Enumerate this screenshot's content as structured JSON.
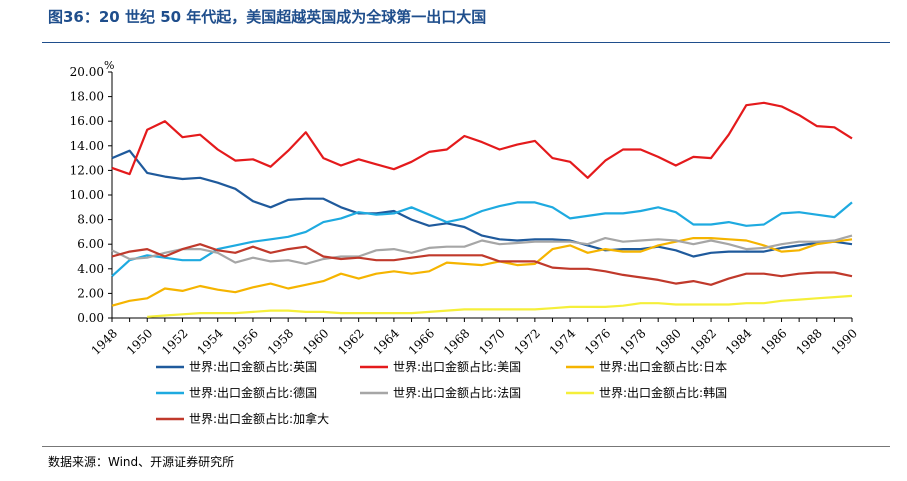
{
  "header": {
    "title": "图36：20 世纪 50 年代起，美国超越英国成为全球第一出口大国"
  },
  "footer": {
    "source": "数据来源：Wind、开源证券研究所"
  },
  "chart_data": {
    "type": "line",
    "ylabel": "%",
    "ylim": [
      0,
      20
    ],
    "xlim": [
      1948,
      1990
    ],
    "yticks": [
      "0.00",
      "2.00",
      "4.00",
      "6.00",
      "8.00",
      "10.00",
      "12.00",
      "14.00",
      "16.00",
      "18.00",
      "20.00"
    ],
    "xticks": [
      1948,
      1950,
      1952,
      1954,
      1956,
      1958,
      1960,
      1962,
      1964,
      1966,
      1968,
      1970,
      1972,
      1974,
      1976,
      1978,
      1980,
      1982,
      1984,
      1986,
      1988,
      1990
    ],
    "grid": false,
    "legend_position": "bottom",
    "x": [
      1948,
      1949,
      1950,
      1951,
      1952,
      1953,
      1954,
      1955,
      1956,
      1957,
      1958,
      1959,
      1960,
      1961,
      1962,
      1963,
      1964,
      1965,
      1966,
      1967,
      1968,
      1969,
      1970,
      1971,
      1972,
      1973,
      1974,
      1975,
      1976,
      1977,
      1978,
      1979,
      1980,
      1981,
      1982,
      1983,
      1984,
      1985,
      1986,
      1987,
      1988,
      1989,
      1990
    ],
    "series": [
      {
        "name": "世界:出口金额占比:英国",
        "color": "#1f5a9c",
        "values": [
          13.0,
          13.6,
          11.8,
          11.5,
          11.3,
          11.4,
          11.0,
          10.5,
          9.5,
          9.0,
          9.6,
          9.7,
          9.7,
          9.0,
          8.5,
          8.5,
          8.7,
          8.0,
          7.5,
          7.7,
          7.4,
          6.7,
          6.4,
          6.3,
          6.4,
          6.4,
          6.3,
          5.9,
          5.5,
          5.6,
          5.6,
          5.8,
          5.5,
          5.0,
          5.3,
          5.4,
          5.4,
          5.4,
          5.7,
          5.9,
          6.1,
          6.2,
          6.0
        ]
      },
      {
        "name": "世界:出口金额占比:美国",
        "color": "#e41a1c",
        "values": [
          12.2,
          11.7,
          15.3,
          16.0,
          14.7,
          14.9,
          13.7,
          12.8,
          12.9,
          12.3,
          13.6,
          15.1,
          13.0,
          12.4,
          12.9,
          12.5,
          12.1,
          12.7,
          13.5,
          13.7,
          14.8,
          14.3,
          13.7,
          14.1,
          14.4,
          13.0,
          12.7,
          11.4,
          12.8,
          13.7,
          13.7,
          13.1,
          12.4,
          13.1,
          13.0,
          14.9,
          17.3,
          17.5,
          17.2,
          16.5,
          15.6,
          15.5,
          14.6
        ]
      },
      {
        "name": "世界:出口金额占比:日本",
        "color": "#f5b400",
        "values": [
          1.0,
          1.4,
          1.6,
          2.4,
          2.2,
          2.6,
          2.3,
          2.1,
          2.5,
          2.8,
          2.4,
          2.7,
          3.0,
          3.6,
          3.2,
          3.6,
          3.8,
          3.6,
          3.8,
          4.5,
          4.4,
          4.3,
          4.6,
          4.3,
          4.4,
          5.6,
          5.9,
          5.3,
          5.6,
          5.4,
          5.4,
          5.9,
          6.2,
          6.5,
          6.5,
          6.4,
          6.3,
          5.9,
          5.4,
          5.5,
          6.0,
          6.2,
          6.4
        ]
      },
      {
        "name": "世界:出口金额占比:德国",
        "color": "#1eaae0",
        "values": [
          3.4,
          4.7,
          5.1,
          4.9,
          4.7,
          4.7,
          5.6,
          5.9,
          6.2,
          6.4,
          6.6,
          7.0,
          7.8,
          8.1,
          8.6,
          8.4,
          8.5,
          9.0,
          8.4,
          7.8,
          8.1,
          8.7,
          9.1,
          9.4,
          9.4,
          9.0,
          8.1,
          8.3,
          8.5,
          8.5,
          8.7,
          9.0,
          8.6,
          7.6,
          7.6,
          7.8,
          7.5,
          7.6,
          8.5,
          8.6,
          8.4,
          8.2,
          9.4
        ]
      },
      {
        "name": "世界:出口金额占比:法国",
        "color": "#a6a6a6",
        "values": [
          5.5,
          4.8,
          4.9,
          5.3,
          5.6,
          5.6,
          5.3,
          4.5,
          4.9,
          4.6,
          4.7,
          4.4,
          4.8,
          5.0,
          5.0,
          5.5,
          5.6,
          5.3,
          5.7,
          5.8,
          5.8,
          6.3,
          6.0,
          6.1,
          6.2,
          6.2,
          6.2,
          6.0,
          6.5,
          6.2,
          6.3,
          6.4,
          6.3,
          6.0,
          6.3,
          6.0,
          5.6,
          5.7,
          6.0,
          6.2,
          6.2,
          6.3,
          6.7
        ]
      },
      {
        "name": "世界:出口金额占比:韩国",
        "color": "#f5ef3a",
        "values": [
          null,
          null,
          0.1,
          0.2,
          0.3,
          0.4,
          0.4,
          0.4,
          0.5,
          0.6,
          0.6,
          0.5,
          0.5,
          0.4,
          0.4,
          0.4,
          0.4,
          0.4,
          0.5,
          0.6,
          0.7,
          0.7,
          0.7,
          0.7,
          0.7,
          0.8,
          0.9,
          0.9,
          0.9,
          1.0,
          1.2,
          1.2,
          1.1,
          1.1,
          1.1,
          1.1,
          1.2,
          1.2,
          1.4,
          1.5,
          1.6,
          1.7,
          1.8
        ]
      },
      {
        "name": "世界:出口金额占比:加拿大",
        "color": "#c0392b",
        "values": [
          5.0,
          5.4,
          5.6,
          5.0,
          5.6,
          6.0,
          5.5,
          5.3,
          5.8,
          5.3,
          5.6,
          5.8,
          5.0,
          4.8,
          4.9,
          4.7,
          4.7,
          4.9,
          5.1,
          5.1,
          5.1,
          5.1,
          4.6,
          4.6,
          4.6,
          4.1,
          4.0,
          4.0,
          3.8,
          3.5,
          3.3,
          3.1,
          2.8,
          3.0,
          2.7,
          3.2,
          3.6,
          3.6,
          3.4,
          3.6,
          3.7,
          3.7,
          3.4
        ]
      }
    ]
  }
}
